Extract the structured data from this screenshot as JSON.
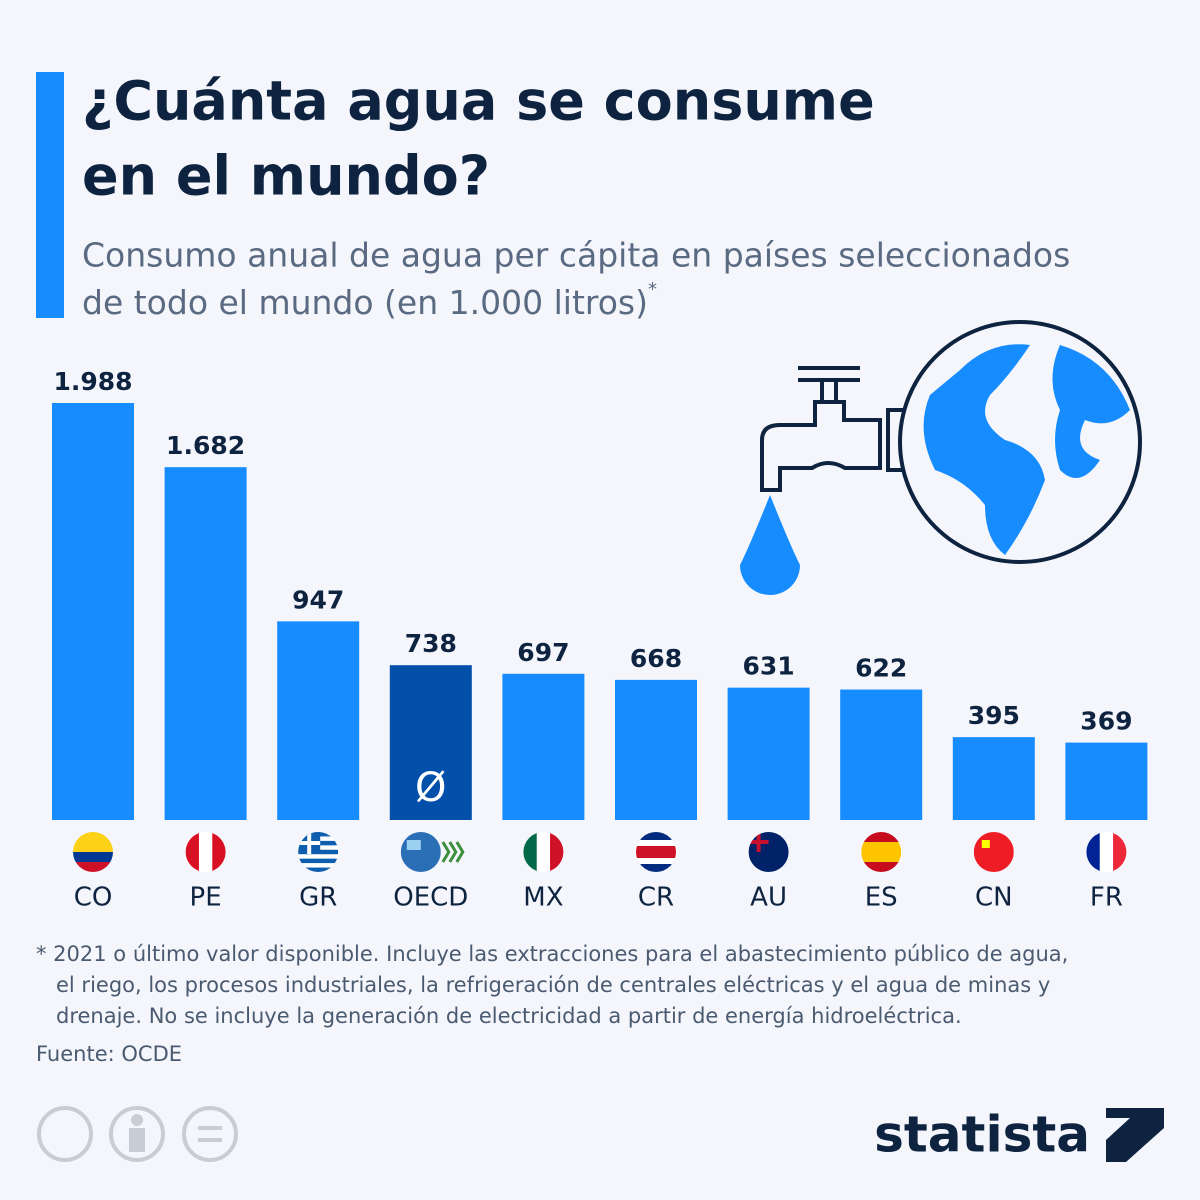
{
  "chart_data": {
    "type": "bar",
    "title": [
      "¿Cuánta agua se consume",
      "en el mundo?"
    ],
    "subtitle": [
      "Consumo anual de agua per cápita en países seleccionados",
      "de todo el mundo (en 1.000 litros)"
    ],
    "subtitle_marker": "*",
    "categories": [
      "CO",
      "PE",
      "GR",
      "OECD",
      "MX",
      "CR",
      "AU",
      "ES",
      "CN",
      "FR"
    ],
    "values": [
      1988,
      1682,
      947,
      738,
      697,
      668,
      631,
      622,
      395,
      369
    ],
    "value_labels": [
      "1.988",
      "1.682",
      "947",
      "738",
      "697",
      "668",
      "631",
      "622",
      "395",
      "369"
    ],
    "colors": [
      "#168cff",
      "#168cff",
      "#168cff",
      "#0250aa",
      "#168cff",
      "#168cff",
      "#168cff",
      "#168cff",
      "#168cff",
      "#168cff"
    ],
    "average_symbol": "Ø",
    "footnote": [
      "* 2021 o último valor disponible. Incluye las extracciones para el abastecimiento público de agua,",
      "el riego, los procesos industriales, la refrigeración de centrales eléctricas y el agua de minas y",
      "drenaje. No se incluye la generación de electricidad a partir de energía hidroeléctrica."
    ],
    "source": "Fuente: OCDE",
    "brand": "statista"
  }
}
